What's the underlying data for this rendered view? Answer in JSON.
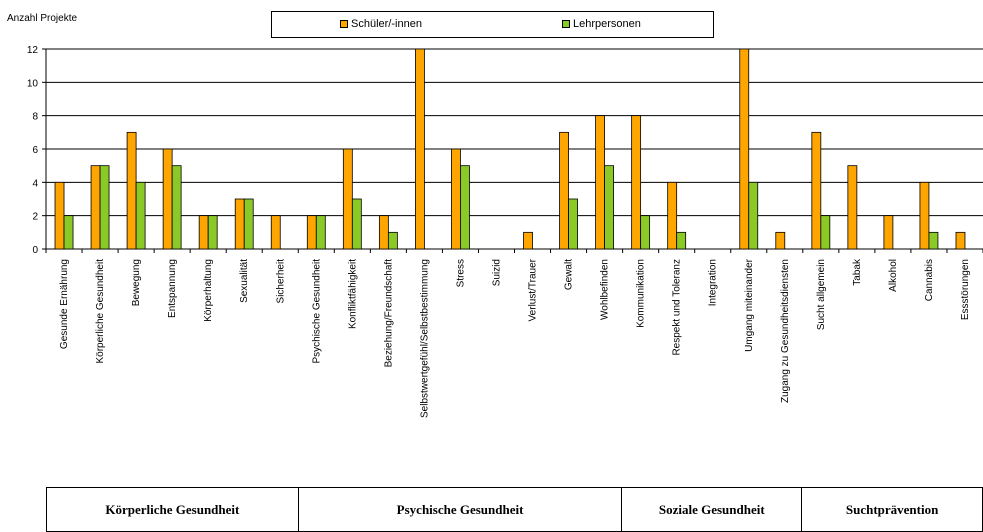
{
  "legend": {
    "s1": "Schüler/-innen",
    "s2": "Lehrpersonen"
  },
  "colors": {
    "schueler": "#ffa500",
    "lehr": "#8ac926"
  },
  "chart_data": {
    "type": "bar",
    "title": "",
    "ylabel": "Anzahl Projekte",
    "xlabel": "",
    "ylim": [
      0,
      12
    ],
    "yticks": [
      0,
      2,
      4,
      6,
      8,
      10,
      12
    ],
    "grid": true,
    "legend_position": "top-center",
    "categories": [
      "Gesunde Ernährung",
      "Körperliche Gesundheit",
      "Bewegung",
      "Entspannung",
      "Körperhaltung",
      "Sexualität",
      "Sicherheit",
      "Psychische Gesundheit",
      "Konfliktfähigkeit",
      "Beziehung/Freundschaft",
      "Selbstwertgefühl/Selbstbestimmung",
      "Stress",
      "Suizid",
      "Verlust/Trauer",
      "Gewalt",
      "Wohlbefinden",
      "Kommunikation",
      "Respekt und Toleranz",
      "Integration",
      "Umgang miteinander",
      "Zugang zu Gesundheitsdiensten",
      "Sucht allgemein",
      "Tabak",
      "Alkohol",
      "Cannabis",
      "Essstörungen"
    ],
    "series": [
      {
        "name": "Schüler/-innen",
        "values": [
          4,
          5,
          7,
          6,
          2,
          3,
          2,
          2,
          6,
          2,
          12,
          6,
          0,
          1,
          7,
          8,
          8,
          4,
          0,
          12,
          1,
          7,
          5,
          2,
          4,
          1
        ]
      },
      {
        "name": "Lehrpersonen",
        "values": [
          2,
          5,
          4,
          5,
          2,
          3,
          0,
          2,
          3,
          1,
          0,
          5,
          0,
          0,
          3,
          5,
          2,
          1,
          0,
          4,
          0,
          2,
          0,
          0,
          1,
          0
        ]
      }
    ]
  },
  "groups": [
    {
      "label": "Körperliche Gesundheit",
      "count": 7
    },
    {
      "label": "Psychische Gesundheit",
      "count": 9
    },
    {
      "label": "Soziale Gesundheit",
      "count": 5
    },
    {
      "label": "Suchtprävention",
      "count": 5
    }
  ]
}
